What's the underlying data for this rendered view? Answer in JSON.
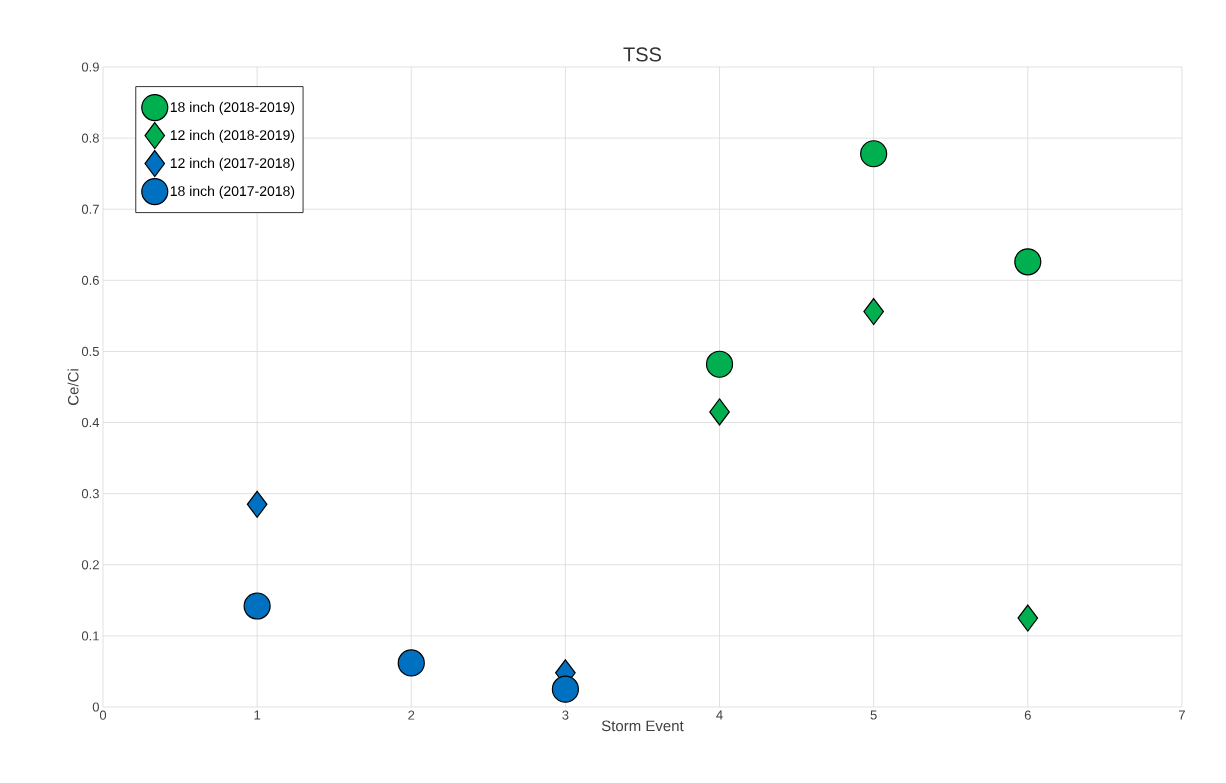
{
  "chart_data": {
    "type": "scatter",
    "title": "TSS",
    "xlabel": "Storm Event",
    "ylabel": "Ce/Ci",
    "xlim": [
      0,
      7
    ],
    "xticks": [
      0,
      1,
      2,
      3,
      4,
      5,
      6,
      7
    ],
    "ylim": [
      0,
      0.9
    ],
    "yticks": [
      0,
      0.1,
      0.2,
      0.3,
      0.4,
      0.5,
      0.6,
      0.7,
      0.8,
      0.9
    ],
    "grid": true,
    "legend": "top left",
    "series": [
      {
        "name": "18 inch (2018-2019)",
        "color": "#00b050",
        "marker": "circle",
        "x": [
          4,
          5,
          6
        ],
        "values": [
          0.482,
          0.778,
          0.626
        ]
      },
      {
        "name": "12 inch (2018-2019)",
        "color": "#00b050",
        "marker": "diamond",
        "x": [
          4,
          5,
          6
        ],
        "values": [
          0.415,
          0.556,
          0.125
        ]
      },
      {
        "name": "12 inch (2017-2018)",
        "color": "#0070c0",
        "marker": "diamond",
        "x": [
          1,
          3
        ],
        "values": [
          0.285,
          0.048
        ]
      },
      {
        "name": "18 inch (2017-2018)",
        "color": "#0070c0",
        "marker": "circle",
        "x": [
          1,
          2,
          3
        ],
        "values": [
          0.142,
          0.062,
          0.025
        ]
      }
    ]
  }
}
